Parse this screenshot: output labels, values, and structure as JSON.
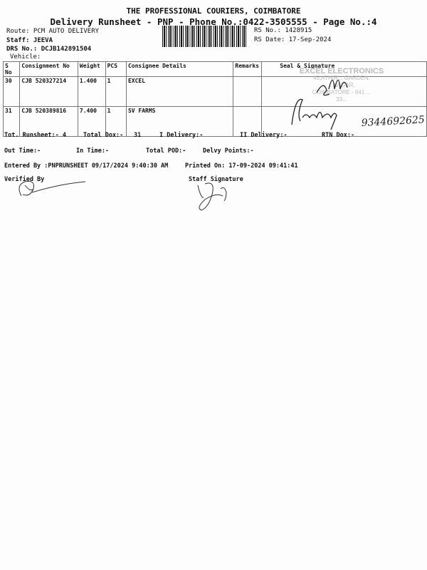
{
  "header": {
    "company": "THE PROFESSIONAL COURIERS, COIMBATORE",
    "subtitle": "Delivery Runsheet - PNP - Phone No.:0422-3505555 - Page No.:4",
    "route": "Route: PCM AUTO DELIVERY",
    "staff": "Staff: JEEVA",
    "drs_no": "DRS No.: DCJB142891504",
    "vehicle": "Vehicle:",
    "rs_no": "RS No.: 1428915",
    "rs_date": "RS Date: 17-Sep-2024"
  },
  "table": {
    "columns": [
      "S No",
      "Consignment No",
      "Weight",
      "PCS",
      "Consignee Details",
      "Remarks",
      "Seal & Signature"
    ],
    "rows": [
      {
        "sno": "30",
        "consignment": "CJB 520327214",
        "weight": "1.400",
        "pcs": "1",
        "consignee": "EXCEL",
        "remarks": ""
      },
      {
        "sno": "31",
        "consignment": "CJB 520389816",
        "weight": "7.400",
        "pcs": "1",
        "consignee": "SV FARMS",
        "remarks": ""
      }
    ]
  },
  "stamp": {
    "lines": [
      "EXCEL ELECTRONICS",
      "45,ATHIR... GARDEN,",
      "...NAGAR,",
      "COIMBATORE - 641 ...",
      "33..."
    ]
  },
  "handwritten_phone": "9344692625",
  "summary": {
    "tot_runsheet": "Tot. Runsheet:- 4",
    "total_dox": "Total Dox:-",
    "total_dox_value": "31",
    "i_delivery": "I Delivery:-",
    "ii_delivery": "II Delivery:-",
    "rtn_dox": "RTN Dox:-",
    "out_time": "Out Time:-",
    "in_time": "In Time:-",
    "total_pod": "Total POD:-",
    "delvy_points": "Delvy Points:-",
    "entered_by": "Entered By :PNPRUNSHEET 09/17/2024 9:40:30 AM",
    "printed_on": "Printed On: 17-09-2024 09:41:41",
    "verified_by": "Verified By",
    "staff_signature": "Staff Signature"
  }
}
